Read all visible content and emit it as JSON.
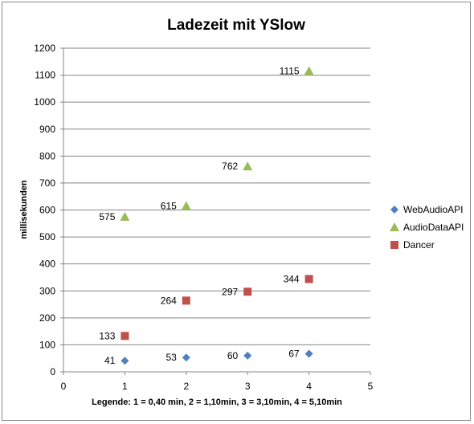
{
  "chart_data": {
    "type": "scatter",
    "title": "Ladezeit mit YSlow",
    "xlabel": "Legende: 1 = 0,40 min, 2 = 1,10min, 3 = 3,10min, 4 = 5,10min",
    "ylabel": "millisekunden",
    "xlim": [
      0,
      5
    ],
    "ylim": [
      0,
      1200
    ],
    "x_ticks": [
      "0",
      "1",
      "2",
      "3",
      "4",
      "5"
    ],
    "y_ticks": [
      "0",
      "100",
      "200",
      "300",
      "400",
      "500",
      "600",
      "700",
      "800",
      "900",
      "1000",
      "1100",
      "1200"
    ],
    "grid": "horizontal",
    "legend_position": "right",
    "series": [
      {
        "name": "WebAudioAPI",
        "marker": "diamond",
        "color": "#4f81bd",
        "x": [
          1,
          2,
          3,
          4
        ],
        "values": [
          41,
          53,
          60,
          67
        ],
        "labels": [
          "41",
          "53",
          "60",
          "67"
        ]
      },
      {
        "name": "AudioDataAPI",
        "marker": "triangle",
        "color": "#9bbb59",
        "x": [
          1,
          2,
          3,
          4
        ],
        "values": [
          575,
          615,
          762,
          1115
        ],
        "labels": [
          "575",
          "615",
          "762",
          "1115"
        ]
      },
      {
        "name": "Dancer",
        "marker": "square",
        "color": "#c0504d",
        "x": [
          1,
          2,
          3,
          4
        ],
        "values": [
          133,
          264,
          297,
          344
        ],
        "labels": [
          "133",
          "264",
          "297",
          "344"
        ]
      }
    ]
  }
}
